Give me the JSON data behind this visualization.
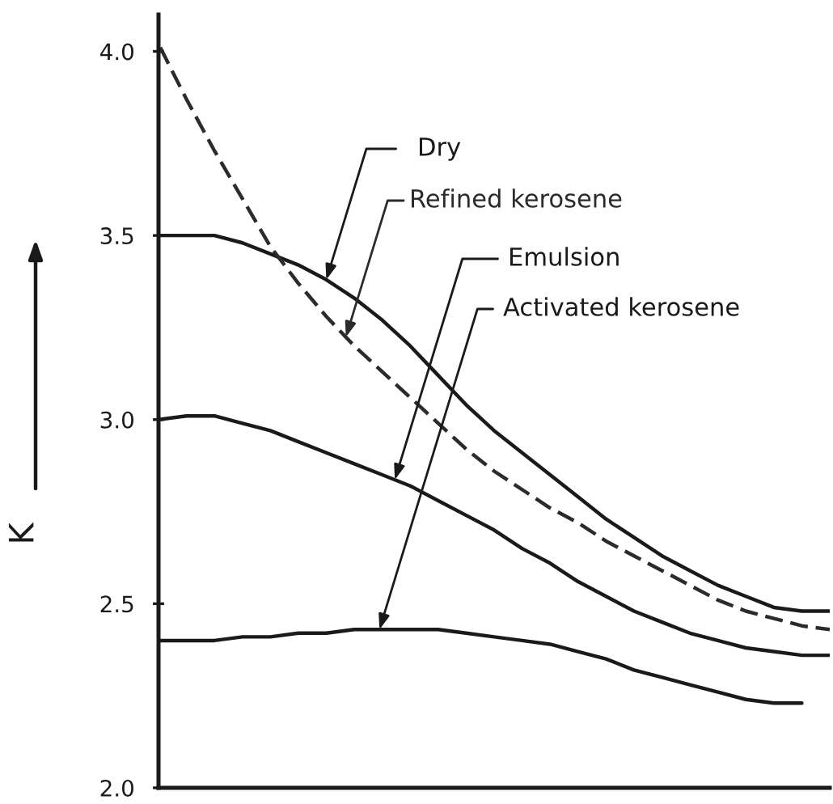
{
  "chart_data": {
    "type": "line",
    "ylabel": "K",
    "categories": [
      null,
      null,
      null,
      null,
      null,
      null,
      null,
      null,
      null,
      null,
      null,
      null,
      null,
      null,
      null,
      null,
      null,
      null,
      null,
      null,
      null,
      null,
      null,
      null,
      null
    ],
    "series": [
      {
        "name": "Dry",
        "color": "#1a1a1a",
        "line_style": "solid",
        "values": [
          3.5,
          3.5,
          3.5,
          3.48,
          3.45,
          3.42,
          3.38,
          3.33,
          3.27,
          3.2,
          3.12,
          3.04,
          2.97,
          2.91,
          2.85,
          2.79,
          2.73,
          2.68,
          2.63,
          2.59,
          2.55,
          2.52,
          2.49,
          2.48,
          2.48
        ]
      },
      {
        "name": "Refined kerosene",
        "color": "#2b2b2b",
        "line_style": "dashed",
        "values": [
          4.02,
          3.87,
          3.73,
          3.6,
          3.47,
          3.37,
          3.28,
          3.2,
          3.13,
          3.06,
          2.99,
          2.92,
          2.86,
          2.81,
          2.76,
          2.72,
          2.67,
          2.63,
          2.59,
          2.55,
          2.51,
          2.48,
          2.46,
          2.44,
          2.43
        ]
      },
      {
        "name": "Emulsion",
        "color": "#1a1a1a",
        "line_style": "solid",
        "values": [
          3.0,
          3.01,
          3.01,
          2.99,
          2.97,
          2.94,
          2.91,
          2.88,
          2.85,
          2.82,
          2.78,
          2.74,
          2.7,
          2.65,
          2.61,
          2.56,
          2.52,
          2.48,
          2.45,
          2.42,
          2.4,
          2.38,
          2.37,
          2.36,
          2.36
        ]
      },
      {
        "name": "Activated kerosene",
        "color": "#1a1a1a",
        "line_style": "solid",
        "values": [
          2.4,
          2.4,
          2.4,
          2.41,
          2.41,
          2.42,
          2.42,
          2.43,
          2.43,
          2.43,
          2.43,
          2.42,
          2.41,
          2.4,
          2.39,
          2.37,
          2.35,
          2.32,
          2.3,
          2.28,
          2.26,
          2.24,
          2.23,
          2.23,
          null
        ]
      }
    ],
    "ylim": [
      2.0,
      4.1
    ],
    "yticks": [
      {
        "value": 2.0,
        "label": "2.0"
      },
      {
        "value": 2.5,
        "label": "2.5"
      },
      {
        "value": 3.0,
        "label": "3.0"
      },
      {
        "value": 3.5,
        "label": "3.5"
      },
      {
        "value": 4.0,
        "label": "4.0"
      }
    ],
    "tick_labels": "y"
  }
}
